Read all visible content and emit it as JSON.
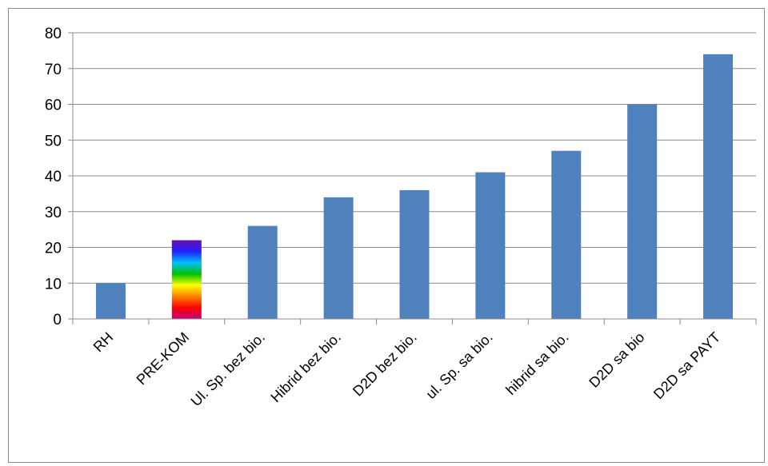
{
  "chart_data": {
    "type": "bar",
    "categories": [
      "RH",
      "PRE-KOM",
      "Ul. Sp. bez bio.",
      "Hibrid bez bio.",
      "D2D bez bio.",
      "ul. Sp. sa bio.",
      "hibrid sa bio.",
      "D2D sa bio",
      "D2D sa PAYT"
    ],
    "values": [
      10,
      22,
      26,
      34,
      36,
      41,
      47,
      60,
      74
    ],
    "title": "",
    "xlabel": "",
    "ylabel": "",
    "ylim": [
      0,
      80
    ],
    "yticks": [
      0,
      10,
      20,
      30,
      40,
      50,
      60,
      70,
      80
    ],
    "grid": true,
    "legend": "none",
    "colors": {
      "bar": "#4f81bd",
      "highlight_gradient": [
        "#6a0dad",
        "#2020ff",
        "#00c0ff",
        "#00c000",
        "#ffff00",
        "#ff8000",
        "#ff0000",
        "#c00080"
      ],
      "gridline": "#8c8c8c",
      "axis": "#8c8c8c"
    },
    "highlight_index": 1
  }
}
